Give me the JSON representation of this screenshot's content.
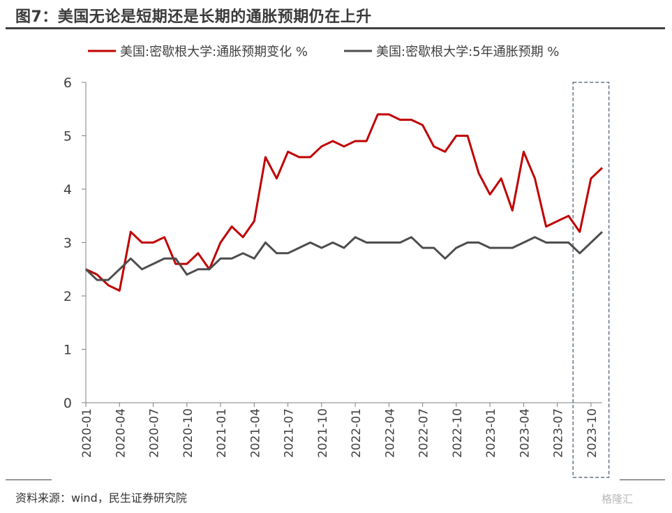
{
  "figure": {
    "title": "图7：美国无论是短期还是长期的通胀预期仍在上升",
    "source": "资料来源：wind，民生证券研究院",
    "watermark": "格隆汇"
  },
  "chart_data": {
    "type": "line",
    "xlabel": "",
    "ylabel": "",
    "ylim": [
      0,
      6
    ],
    "yticks": [
      0,
      1,
      2,
      3,
      4,
      5,
      6
    ],
    "x": [
      "2020-01",
      "2020-02",
      "2020-03",
      "2020-04",
      "2020-05",
      "2020-06",
      "2020-07",
      "2020-08",
      "2020-09",
      "2020-10",
      "2020-11",
      "2020-12",
      "2021-01",
      "2021-02",
      "2021-03",
      "2021-04",
      "2021-05",
      "2021-06",
      "2021-07",
      "2021-08",
      "2021-09",
      "2021-10",
      "2021-11",
      "2021-12",
      "2022-01",
      "2022-02",
      "2022-03",
      "2022-04",
      "2022-05",
      "2022-06",
      "2022-07",
      "2022-08",
      "2022-09",
      "2022-10",
      "2022-11",
      "2022-12",
      "2023-01",
      "2023-02",
      "2023-03",
      "2023-04",
      "2023-05",
      "2023-06",
      "2023-07",
      "2023-08",
      "2023-09",
      "2023-10",
      "2023-11"
    ],
    "xtick_labels": [
      "2020-01",
      "2020-04",
      "2020-07",
      "2020-10",
      "2021-01",
      "2021-04",
      "2021-07",
      "2021-10",
      "2022-01",
      "2022-04",
      "2022-07",
      "2022-10",
      "2023-01",
      "2023-04",
      "2023-07",
      "2023-10"
    ],
    "series": [
      {
        "name": "美国:密歇根大学:通胀预期变化 %",
        "color": "#c00000",
        "values": [
          2.5,
          2.4,
          2.2,
          2.1,
          3.2,
          3.0,
          3.0,
          3.1,
          2.6,
          2.6,
          2.8,
          2.5,
          3.0,
          3.3,
          3.1,
          3.4,
          4.6,
          4.2,
          4.7,
          4.6,
          4.6,
          4.8,
          4.9,
          4.8,
          4.9,
          4.9,
          5.4,
          5.4,
          5.3,
          5.3,
          5.2,
          4.8,
          4.7,
          5.0,
          5.0,
          4.3,
          3.9,
          4.2,
          3.6,
          4.7,
          4.2,
          3.3,
          3.4,
          3.5,
          3.2,
          4.2,
          4.4
        ]
      },
      {
        "name": "美国:密歇根大学:5年通胀预期 %",
        "color": "#4d4d4d",
        "values": [
          2.5,
          2.3,
          2.3,
          2.5,
          2.7,
          2.5,
          2.6,
          2.7,
          2.7,
          2.4,
          2.5,
          2.5,
          2.7,
          2.7,
          2.8,
          2.7,
          3.0,
          2.8,
          2.8,
          2.9,
          3.0,
          2.9,
          3.0,
          2.9,
          3.1,
          3.0,
          3.0,
          3.0,
          3.0,
          3.1,
          2.9,
          2.9,
          2.7,
          2.9,
          3.0,
          3.0,
          2.9,
          2.9,
          2.9,
          3.0,
          3.1,
          3.0,
          3.0,
          3.0,
          2.8,
          3.0,
          3.2
        ]
      }
    ],
    "highlight": {
      "from": "2023-09",
      "to": "2023-11",
      "style": "dashed box"
    },
    "legend_position": "top-center",
    "grid": false
  }
}
